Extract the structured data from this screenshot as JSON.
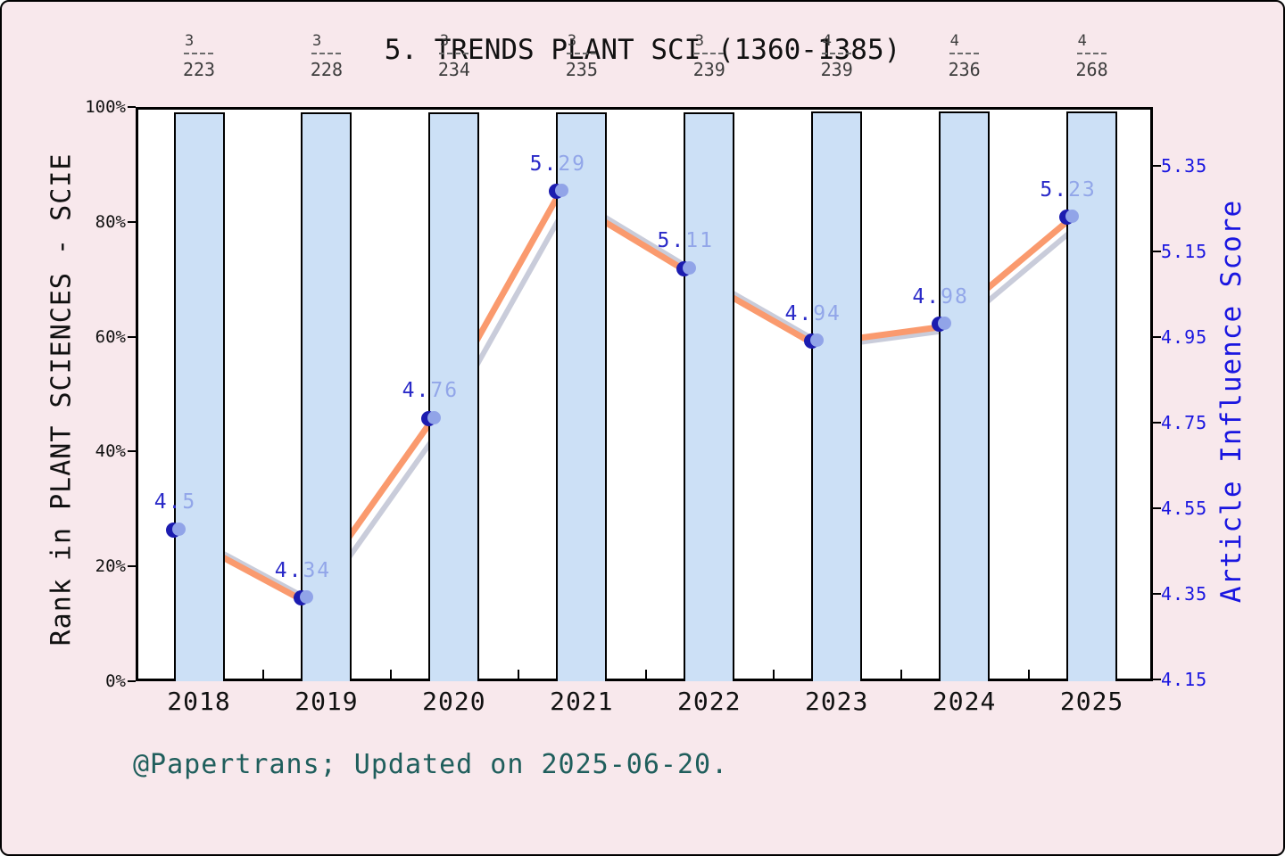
{
  "title": "5. TRENDS PLANT SCI (1360-1385)",
  "footer": "@Papertrans; Updated on 2025-06-20.",
  "left_axis": {
    "label": "Rank in PLANT SCIENCES - SCIE",
    "ticks": [
      "0%",
      "20%",
      "40%",
      "60%",
      "80%",
      "100%"
    ],
    "tick_percents": [
      0,
      20,
      40,
      60,
      80,
      100
    ]
  },
  "right_axis": {
    "label": "Article Influence Score",
    "ticks": [
      "4.15",
      "4.35",
      "4.55",
      "4.75",
      "4.95",
      "5.15",
      "5.35"
    ],
    "tick_values": [
      4.15,
      4.35,
      4.55,
      4.75,
      4.95,
      5.15,
      5.35
    ]
  },
  "chart_data": {
    "type": "bar",
    "subtype": "bar+line combo, dual y-axes",
    "title": "5. TRENDS PLANT SCI (1360-1385)",
    "categories": [
      "2018",
      "2019",
      "2020",
      "2021",
      "2022",
      "2023",
      "2024",
      "2025"
    ],
    "series": [
      {
        "name": "Rank in PLANT SCIENCES - SCIE",
        "type": "bar",
        "axis": "left",
        "unit": "percentile %",
        "values": [
          99.05,
          99.05,
          99.05,
          99.05,
          99.05,
          99.3,
          99.3,
          99.2
        ],
        "rank_fractions": [
          "3/223",
          "3/228",
          "3/234",
          "3/235",
          "3/239",
          "4/239",
          "4/236",
          "4/268"
        ],
        "fraction_numerators": [
          "3",
          "3",
          "3",
          "3",
          "3",
          "4",
          "4",
          "4"
        ],
        "fraction_denominators": [
          "223",
          "228",
          "234",
          "235",
          "239",
          "239",
          "236",
          "268"
        ]
      },
      {
        "name": "Article Influence Score",
        "type": "line",
        "axis": "right",
        "values": [
          4.5,
          4.34,
          4.76,
          5.29,
          5.11,
          4.94,
          4.98,
          5.23
        ],
        "point_labels": [
          "4.5",
          "4.34",
          "4.76",
          "5.29",
          "5.11",
          "4.94",
          "4.98",
          "5.23"
        ]
      }
    ],
    "xlabel": "",
    "ylabel_left": "Rank in PLANT SCIENCES - SCIE",
    "ylabel_right": "Article Influence Score",
    "left_ylim_percent": [
      0,
      100
    ],
    "right_ylim": [
      4.15,
      5.49
    ],
    "grid": false,
    "legend": "none"
  },
  "colors": {
    "background": "#f8e8ec",
    "plot_background": "#ffffff",
    "bar_fill": "#cce0f6",
    "bar_edge": "#000000",
    "line": "#fa9a6e",
    "line_shadow": "#c3c6d6",
    "marker_dark": "#1c1cb0",
    "marker_light": "#91a4e8",
    "value_label_strong": "#2a2ac8",
    "value_label_faded": "#8d9fe0",
    "right_axis_blue": "#1a16e0",
    "footer_teal": "#1f5e5c",
    "fraction_grey": "#3d3d3d"
  }
}
